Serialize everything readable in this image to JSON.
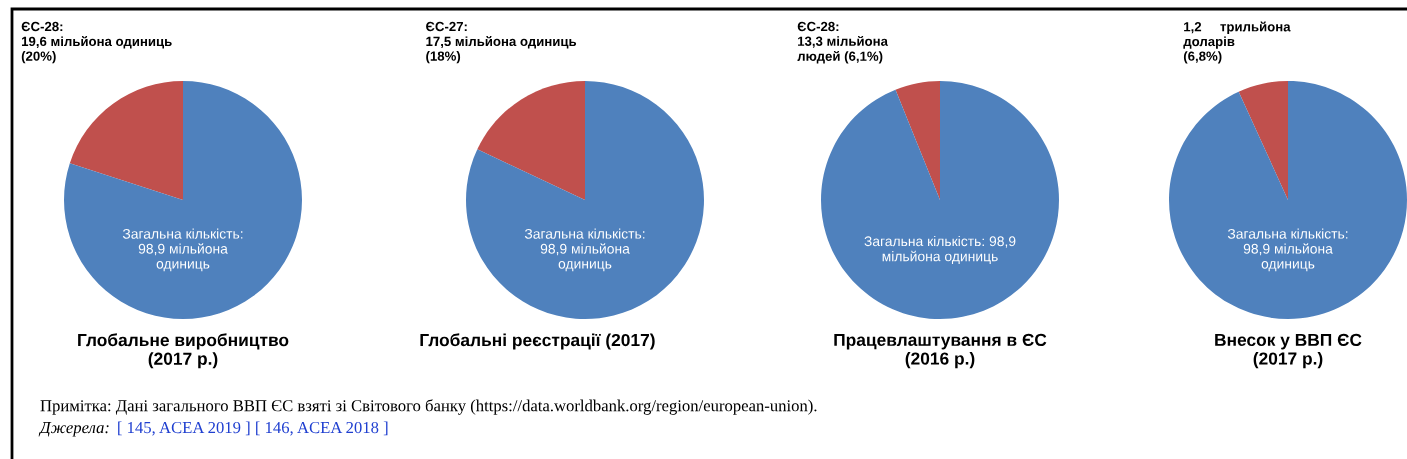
{
  "chart_data": [
    {
      "type": "pie",
      "title": "Глобальне виробництво\n(2017 р.)",
      "categories": [
        "ЄС-28:\n19,6 мільйона одиниць\n(20%)",
        "Загальна кількість:\n98,9 мільйона\nодиниць"
      ],
      "values": [
        20,
        80
      ],
      "colors": [
        "#c0504d",
        "#4f81bd"
      ],
      "annotations": [
        "Примітка: Дані загального ВВП ЄС взяті зі Світового банку (https://data.worldbank.org/region/european-union).",
        "Джерела:",
        "[ 145, ACEA 2019 ] [ 146, ACEA 2018 ]"
      ]
    },
    {
      "type": "pie",
      "title": "Глобальні реєстрації (2017)",
      "categories": [
        "ЄС-27:\n17,5 мільйона одиниць\n(18%)",
        "Загальна кількість:\n98,9 мільйона\nодиниць"
      ],
      "values": [
        18,
        82
      ],
      "colors": [
        "#c0504d",
        "#4f81bd"
      ]
    },
    {
      "type": "pie",
      "title": "Працевлаштування в ЄС\n(2016 р.)",
      "categories": [
        "ЄС-28:\n13,3 мільйона\nлюдей (6,1%)",
        "Загальна кількість: 98,9\nмільйона одиниць"
      ],
      "values": [
        6.1,
        93.9
      ],
      "colors": [
        "#c0504d",
        "#4f81bd"
      ]
    },
    {
      "type": "pie",
      "title": "Внесок у ВВП ЄС\n(2017 р.)",
      "categories": [
        "1,2     трильйона\nдоларів\n(6,8%)",
        "Загальна кількість:\n98,9 мільйона\nодиниць"
      ],
      "values": [
        6.8,
        93.2
      ],
      "colors": [
        "#c0504d",
        "#4f81bd"
      ]
    }
  ]
}
